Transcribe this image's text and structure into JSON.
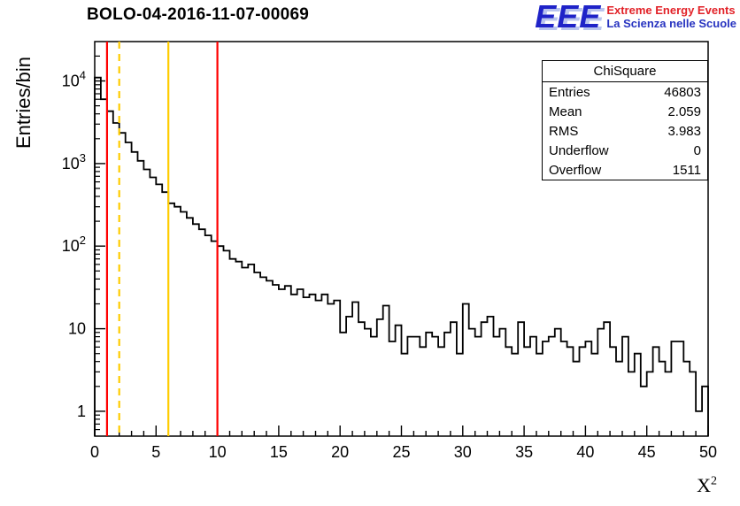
{
  "title": "BOLO-04-2016-11-07-00069",
  "logo": {
    "eee": "EEE",
    "line1": "Extreme Energy Events",
    "line2": "La Scienza nelle Scuole",
    "eee_color": "#1f23c8",
    "line1_color": "#e22228",
    "line2_color": "#2733c0"
  },
  "axis_labels": {
    "y": "Entries/bin",
    "x_base": "X",
    "x_exp": "2"
  },
  "stats": {
    "title": "ChiSquare",
    "rows": [
      {
        "label": "Entries",
        "value": "46803"
      },
      {
        "label": "Mean",
        "value": "2.059"
      },
      {
        "label": "RMS",
        "value": "3.983"
      },
      {
        "label": "Underflow",
        "value": "0"
      },
      {
        "label": "Overflow",
        "value": "1511"
      }
    ]
  },
  "chart_data": {
    "type": "bar",
    "subtype": "step-histogram",
    "title": "BOLO-04-2016-11-07-00069",
    "xlabel": "X^2",
    "ylabel": "Entries/bin",
    "xlim": [
      0,
      50
    ],
    "ylim": [
      0.5,
      30000
    ],
    "yscale": "log",
    "x_tick_major": 5,
    "x_tick_minor": 1,
    "bin_start": 0,
    "bin_width": 0.5,
    "values": [
      11000,
      6000,
      4300,
      3100,
      2350,
      1800,
      1380,
      1080,
      850,
      680,
      560,
      450,
      330,
      300,
      260,
      220,
      185,
      160,
      135,
      115,
      100,
      88,
      70,
      65,
      55,
      60,
      48,
      42,
      38,
      34,
      30,
      33,
      26,
      30,
      24,
      26,
      22,
      26,
      20,
      22,
      9,
      14,
      21,
      12,
      10,
      8,
      13,
      19,
      7,
      11,
      5,
      8,
      8,
      6,
      9,
      8,
      6,
      9,
      12,
      5,
      20,
      10,
      8,
      12,
      14,
      8,
      10,
      6,
      5,
      12,
      6,
      8,
      5,
      7,
      8,
      10,
      7,
      6,
      4,
      6,
      7,
      5,
      10,
      12,
      6,
      4,
      8,
      3,
      5,
      2,
      3,
      6,
      4,
      3,
      7,
      7,
      4,
      3,
      1,
      2
    ],
    "line_color": "#000000",
    "reference_lines": [
      {
        "x": 1,
        "color": "#ff0000",
        "style": "solid"
      },
      {
        "x": 2,
        "color": "#ffcc00",
        "style": "dashed"
      },
      {
        "x": 6,
        "color": "#ffcc00",
        "style": "solid"
      },
      {
        "x": 10,
        "color": "#ff0000",
        "style": "solid"
      }
    ],
    "legend": "none",
    "grid": false
  }
}
